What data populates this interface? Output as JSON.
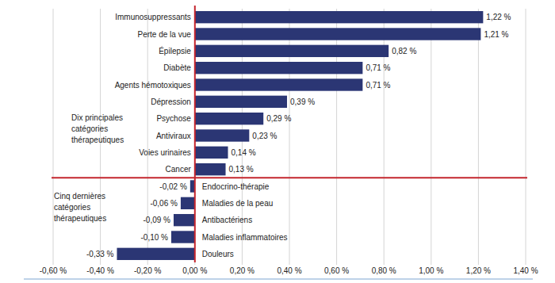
{
  "chart_data": {
    "type": "bar",
    "orientation": "horizontal",
    "categories": [
      "Immunosuppressants",
      "Perte de la vue",
      "Épilepsie",
      "Diabète",
      "Agents hémotoxiques",
      "Dépression",
      "Psychose",
      "Antiviraux",
      "Voies urinaires",
      "Cancer",
      "Endocrino-thérapie",
      "Maladies de la peau",
      "Antibactériens",
      "Maladies inflammatoires",
      "Douleurs"
    ],
    "values": [
      1.22,
      1.21,
      0.82,
      0.71,
      0.71,
      0.39,
      0.29,
      0.23,
      0.14,
      0.13,
      -0.02,
      -0.06,
      -0.09,
      -0.1,
      -0.33
    ],
    "value_labels": [
      "1,22 %",
      "1,21 %",
      "0,82 %",
      "0,71 %",
      "0,71 %",
      "0,39 %",
      "0,29 %",
      "0,23 %",
      "0,14 %",
      "0,13 %",
      "-0,02 %",
      "-0,06 %",
      "-0,09 %",
      "-0,10 %",
      "-0,33 %"
    ],
    "color": "#2b3674",
    "xlim": [
      -0.6,
      1.4
    ],
    "xticks": [
      {
        "value": -0.6,
        "label": "-0,60 %"
      },
      {
        "value": -0.4,
        "label": "-0,40 %"
      },
      {
        "value": -0.2,
        "label": "-0,20 %"
      },
      {
        "value": 0,
        "label": "0,00 %"
      },
      {
        "value": 0.2,
        "label": "0,20 %"
      },
      {
        "value": 0.4,
        "label": "0,40 %"
      },
      {
        "value": 0.6,
        "label": "0,60 %"
      },
      {
        "value": 0.8,
        "label": "0,80 %"
      },
      {
        "value": 1.0,
        "label": "1,00 %"
      },
      {
        "value": 1.2,
        "label": "1,20 %"
      },
      {
        "value": 1.4,
        "label": "1,40 %"
      }
    ],
    "grid": true,
    "data_labels": true,
    "annotations": [
      "Dix principales catégories thérapeutiques",
      "Cinq dernières catégories thérapeutiques"
    ]
  }
}
